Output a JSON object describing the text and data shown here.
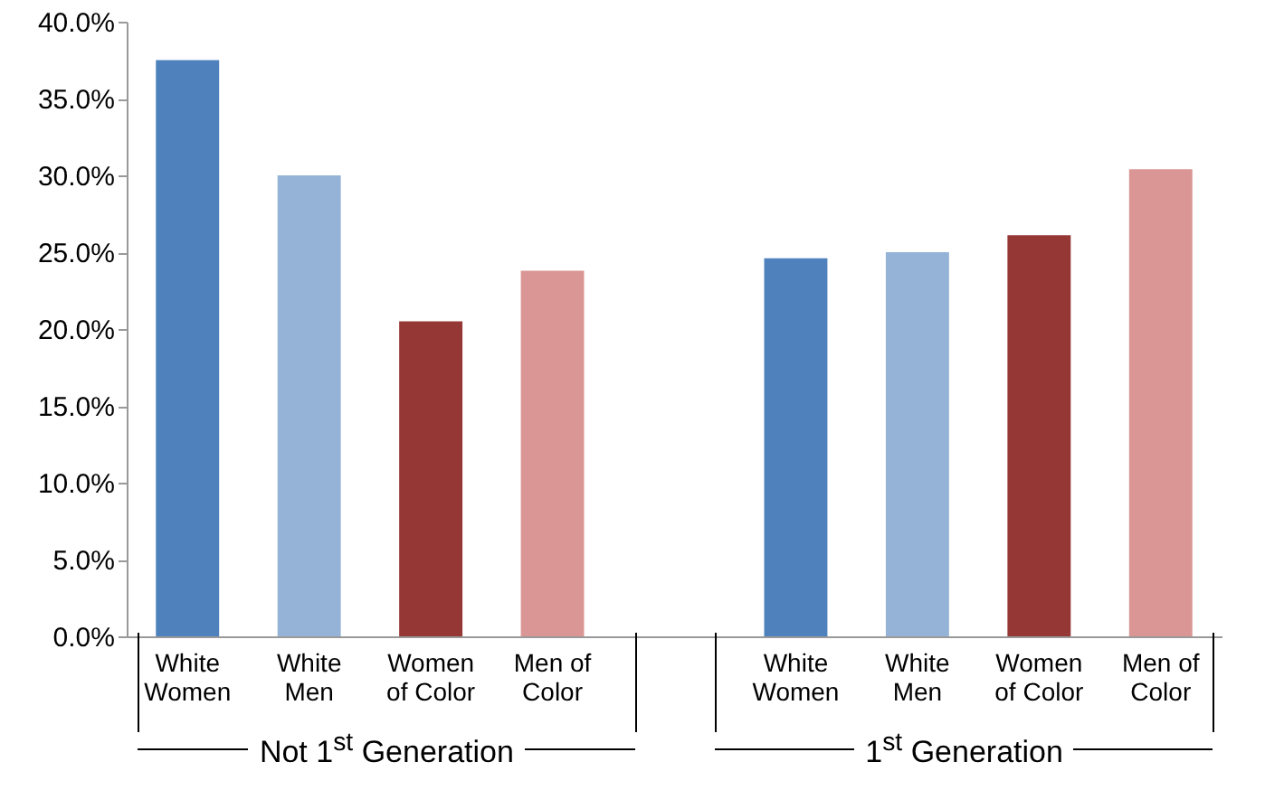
{
  "chart_data": {
    "type": "bar",
    "categories": [
      "White Women",
      "White Men",
      "Women of Color",
      "Men of Color",
      null,
      "White Women",
      "White Men",
      "Women of Color",
      "Men of Color"
    ],
    "values": [
      37.5,
      30.0,
      20.5,
      23.8,
      null,
      24.6,
      25.0,
      26.1,
      30.4
    ],
    "colors": [
      "#4f81bd",
      "#95b3d7",
      "#953735",
      "#d99694",
      "#ffffff",
      "#4f81bd",
      "#95b3d7",
      "#953735",
      "#d99694"
    ],
    "ylim": [
      0,
      40
    ],
    "yticks": [
      {
        "value": 0,
        "label": "0.0%"
      },
      {
        "value": 5,
        "label": "5.0%"
      },
      {
        "value": 10,
        "label": "10.0%"
      },
      {
        "value": 15,
        "label": "15.0%"
      },
      {
        "value": 20,
        "label": "20.0%"
      },
      {
        "value": 25,
        "label": "25.0%"
      },
      {
        "value": 30,
        "label": "30.0%"
      },
      {
        "value": 35,
        "label": "35.0%"
      },
      {
        "value": 40,
        "label": "40.0%"
      }
    ],
    "grid": false,
    "annotations": [
      "Not 1$^{st}$ Generation",
      "1$^{st}$ Generation"
    ]
  }
}
